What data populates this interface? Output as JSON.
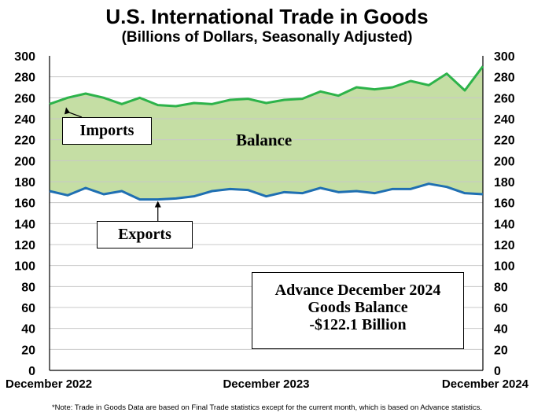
{
  "chart_data": {
    "type": "area",
    "title": "U.S. International Trade in Goods",
    "subtitle": "(Billions of Dollars, Seasonally Adjusted)",
    "xlabel": "",
    "ylabel": "",
    "ylim": [
      0,
      300
    ],
    "yticks": [
      0,
      20,
      40,
      60,
      80,
      100,
      120,
      140,
      160,
      180,
      200,
      220,
      240,
      260,
      280,
      300
    ],
    "x_tick_labels": [
      "December 2022",
      "December 2023",
      "December 2024"
    ],
    "x_tick_index": [
      0,
      12,
      24
    ],
    "grid": true,
    "series": [
      {
        "name": "Imports",
        "color": "#2db34a",
        "values": [
          254,
          260,
          264,
          260,
          254,
          260,
          253,
          252,
          255,
          254,
          258,
          259,
          255,
          258,
          259,
          266,
          262,
          270,
          268,
          270,
          276,
          272,
          283,
          267,
          290
        ]
      },
      {
        "name": "Exports",
        "color": "#1f6fb2",
        "values": [
          171,
          167,
          174,
          168,
          171,
          163,
          163,
          164,
          166,
          171,
          173,
          172,
          166,
          170,
          169,
          174,
          170,
          171,
          169,
          173,
          173,
          178,
          175,
          169,
          168
        ]
      }
    ],
    "fill_label": "Balance",
    "fill_color": "#c5dea4",
    "annotations": {
      "imports_label": "Imports",
      "exports_label": "Exports",
      "advance_line1": "Advance December 2024",
      "advance_line2": "Goods Balance",
      "advance_line3": "-$122.1 Billion"
    }
  },
  "footnote": "*Note: Trade in Goods Data are based on Final Trade statistics except for the current month, which is based on Advance statistics."
}
